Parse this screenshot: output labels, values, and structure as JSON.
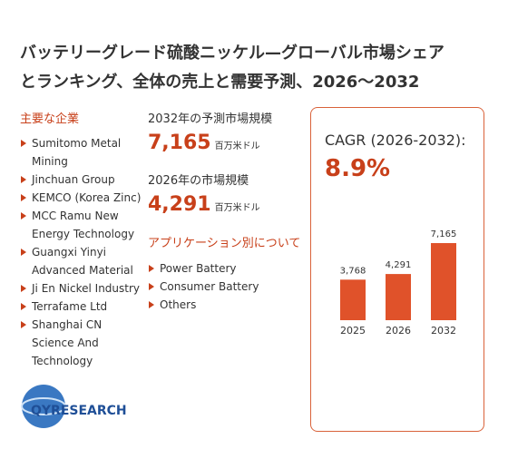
{
  "header": {
    "title_line1": "バッテリーグレード硫酸ニッケル—グローバル市場シェア",
    "title_line2": "とランキング、全体の売上と需要予測、2026～2032"
  },
  "companies": {
    "heading": "主要な企業",
    "items": [
      "Sumitomo Metal Mining",
      "Jinchuan Group",
      "KEMCO (Korea Zinc)",
      "MCC Ramu New Energy Technology",
      "Guangxi Yinyi Advanced Material",
      "Ji En Nickel Industry",
      "Terrafame Ltd",
      "Shanghai CN Science And Technology"
    ]
  },
  "market": {
    "label_2032": "2032年の予測市場規模",
    "value_2032": "7,165",
    "unit_2032": "百万米ドル",
    "label_2026": "2026年の市場規模",
    "value_2026": "4,291",
    "unit_2026": "百万米ドル"
  },
  "applications": {
    "heading": "アプリケーション別について",
    "items": [
      "Power Battery",
      "Consumer Battery",
      "Others"
    ]
  },
  "cagr": {
    "label": "CAGR (2026-2032):",
    "value": "8.9%"
  },
  "logo": {
    "text": "QYRESEARCH"
  },
  "chart_data": {
    "type": "bar",
    "categories": [
      "2025",
      "2026",
      "2032"
    ],
    "values": [
      3768,
      4291,
      7165
    ],
    "value_labels": [
      "3,768",
      "4,291",
      "7,165"
    ],
    "color": "#e0522a"
  }
}
